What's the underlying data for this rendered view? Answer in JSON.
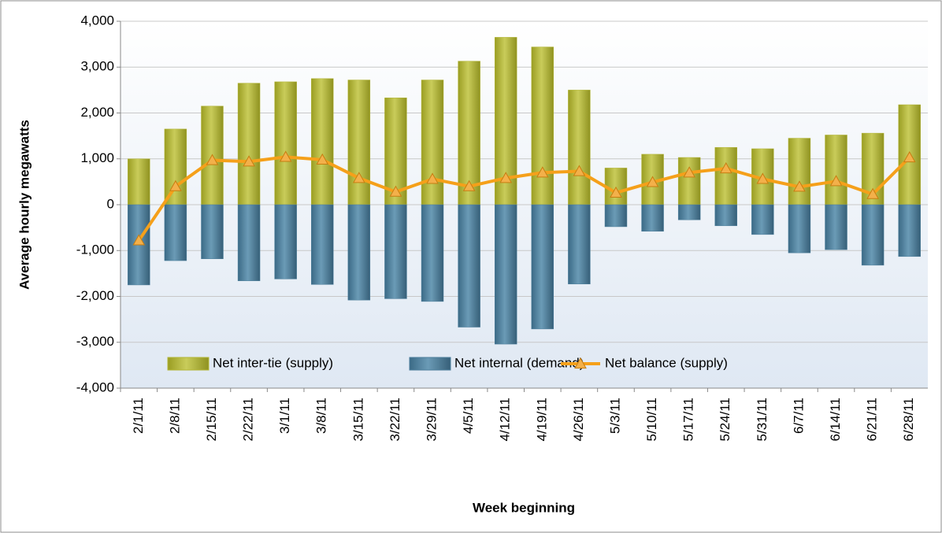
{
  "chart_data": {
    "type": "bar-line",
    "ylabel": "Average hourly megawatts",
    "xlabel": "Week beginning",
    "categories": [
      "2/1/11",
      "2/8/11",
      "2/15/11",
      "2/22/11",
      "3/1/11",
      "3/8/11",
      "3/15/11",
      "3/22/11",
      "3/29/11",
      "4/5/11",
      "4/12/11",
      "4/19/11",
      "4/26/11",
      "5/3/11",
      "5/10/11",
      "5/17/11",
      "5/24/11",
      "5/31/11",
      "6/7/11",
      "6/14/11",
      "6/21/11",
      "6/28/11"
    ],
    "series": [
      {
        "name": "Net inter-tie (supply)",
        "type": "bar",
        "color": "#b3b636",
        "values": [
          1000,
          1650,
          2150,
          2650,
          2680,
          2750,
          2720,
          2330,
          2720,
          3130,
          3650,
          3440,
          2500,
          800,
          1100,
          1030,
          1250,
          1220,
          1450,
          1520,
          1560,
          2180
        ]
      },
      {
        "name": "Net internal (demand)",
        "type": "bar",
        "color": "#4d7f9c",
        "values": [
          -1750,
          -1220,
          -1180,
          -1660,
          -1620,
          -1740,
          -2080,
          -2050,
          -2110,
          -2670,
          -3040,
          -2710,
          -1730,
          -480,
          -580,
          -330,
          -460,
          -650,
          -1050,
          -980,
          -1320,
          -1130
        ]
      },
      {
        "name": "Net balance (supply)",
        "type": "line",
        "color": "#f5a01a",
        "values": [
          -780,
          400,
          970,
          940,
          1040,
          980,
          580,
          280,
          560,
          400,
          580,
          700,
          730,
          260,
          490,
          700,
          790,
          560,
          390,
          510,
          230,
          1030
        ]
      }
    ],
    "ylim": [
      -4000,
      4000
    ],
    "yticks": [
      {
        "value": -4000,
        "label": "-4,000"
      },
      {
        "value": -3000,
        "label": "-3,000"
      },
      {
        "value": -2000,
        "label": "-2,000"
      },
      {
        "value": -1000,
        "label": "-1,000"
      },
      0,
      {
        "value": 1000,
        "label": "1,000"
      },
      {
        "value": 2000,
        "label": "2,000"
      },
      {
        "value": 3000,
        "label": "3,000"
      },
      {
        "value": 4000,
        "label": "4,000"
      }
    ],
    "grid": true,
    "legend": "lower center"
  }
}
